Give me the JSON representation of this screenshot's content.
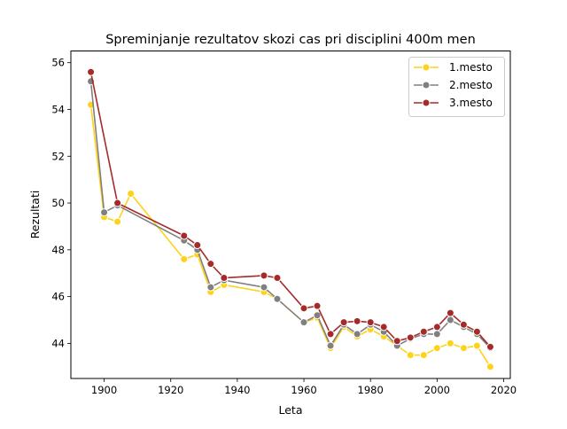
{
  "chart_data": {
    "type": "line",
    "title": "Spreminjanje rezultatov skozi cas pri disciplini 400m men",
    "xlabel": "Leta",
    "ylabel": "Rezultati",
    "xlim": [
      1890,
      2022
    ],
    "ylim": [
      42.5,
      56.5
    ],
    "xticks": [
      1900,
      1920,
      1940,
      1960,
      1980,
      2000,
      2020
    ],
    "yticks": [
      44,
      46,
      48,
      50,
      52,
      54,
      56
    ],
    "grid": false,
    "legend_position": "top-right",
    "series": [
      {
        "name": "1.mesto",
        "color": "#ffd21a",
        "x": [
          1896,
          1900,
          1904,
          1908,
          1924,
          1928,
          1932,
          1936,
          1948,
          1952,
          1960,
          1964,
          1968,
          1972,
          1976,
          1980,
          1984,
          1988,
          1992,
          1996,
          2000,
          2004,
          2008,
          2012,
          2016
        ],
        "y": [
          54.2,
          49.4,
          49.2,
          50.4,
          47.6,
          47.8,
          46.2,
          46.5,
          46.2,
          45.9,
          44.9,
          45.1,
          43.8,
          44.7,
          44.3,
          44.6,
          44.3,
          43.9,
          43.5,
          43.5,
          43.8,
          44.0,
          43.8,
          43.9,
          43.0
        ]
      },
      {
        "name": "2.mesto",
        "color": "#808080",
        "x": [
          1896,
          1900,
          1904,
          1924,
          1928,
          1932,
          1936,
          1948,
          1952,
          1960,
          1964,
          1968,
          1972,
          1976,
          1980,
          1984,
          1988,
          1992,
          1996,
          2000,
          2004,
          2008,
          2012,
          2016
        ],
        "y": [
          55.2,
          49.6,
          49.9,
          48.4,
          48.0,
          46.4,
          46.7,
          46.4,
          45.9,
          44.9,
          45.2,
          43.9,
          44.8,
          44.4,
          44.8,
          44.5,
          43.9,
          44.2,
          44.4,
          44.4,
          45.0,
          44.7,
          44.4,
          43.8
        ]
      },
      {
        "name": "3.mesto",
        "color": "#a52a2a",
        "x": [
          1896,
          1904,
          1924,
          1928,
          1932,
          1936,
          1948,
          1952,
          1960,
          1964,
          1968,
          1972,
          1976,
          1980,
          1984,
          1988,
          1992,
          1996,
          2000,
          2004,
          2008,
          2012,
          2016
        ],
        "y": [
          55.6,
          50.0,
          48.6,
          48.2,
          47.4,
          46.8,
          46.9,
          46.8,
          45.5,
          45.6,
          44.4,
          44.9,
          44.95,
          44.9,
          44.7,
          44.1,
          44.25,
          44.5,
          44.7,
          45.3,
          44.8,
          44.5,
          43.85
        ]
      }
    ]
  }
}
